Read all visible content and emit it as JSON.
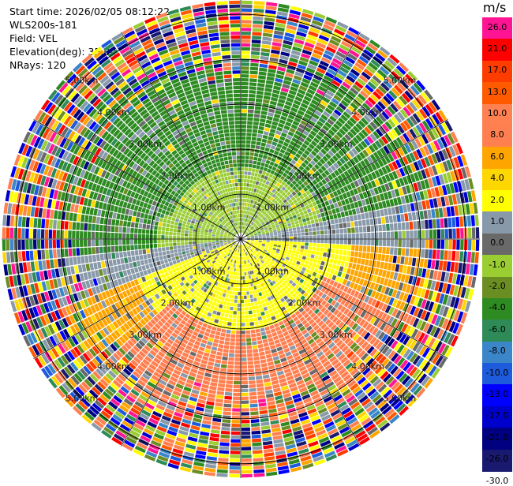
{
  "header": {
    "start_time": "Start time: 2026/02/05 08:12:22",
    "instrument": "WLS200s-181",
    "field": "Field: VEL",
    "elevation": "Elevation(deg): 35.00",
    "nrays": "NRays: 120"
  },
  "chart_data": {
    "type": "heatmap",
    "projection": "polar-ppi",
    "field": "VEL",
    "unit": "m/s",
    "n_rays": 120,
    "elevation_deg": 35.0,
    "max_range_km": 5.0,
    "range_ring_labels": [
      "1.00km",
      "2.00km",
      "3.00km",
      "4.00km",
      "5.00km"
    ],
    "ring_ranges_km": [
      1,
      2,
      3,
      4,
      5
    ],
    "colorbar": {
      "unit": "m/s",
      "ticks": [
        "26.0",
        "21.0",
        "17.0",
        "13.0",
        "10.0",
        "8.0",
        "6.0",
        "4.0",
        "2.0",
        "1.0",
        "0.0",
        "-1.0",
        "-2.0",
        "-4.0",
        "-6.0",
        "-8.0",
        "-10.0",
        "-13.0",
        "-17.0",
        "-21.0",
        "-26.0",
        "-30.0"
      ],
      "colors": [
        "#ff1493",
        "#ff0000",
        "#ff3c00",
        "#ff5a00",
        "#ff8050",
        "#ff7f50",
        "#ffa500",
        "#ffd700",
        "#ffff00",
        "#8899aa",
        "#696969",
        "#9acd32",
        "#6b8e23",
        "#2e8b22",
        "#2e8b57",
        "#3a86c8",
        "#1e5adc",
        "#0000ff",
        "#0000cd",
        "#000080",
        "#191970"
      ]
    }
  }
}
